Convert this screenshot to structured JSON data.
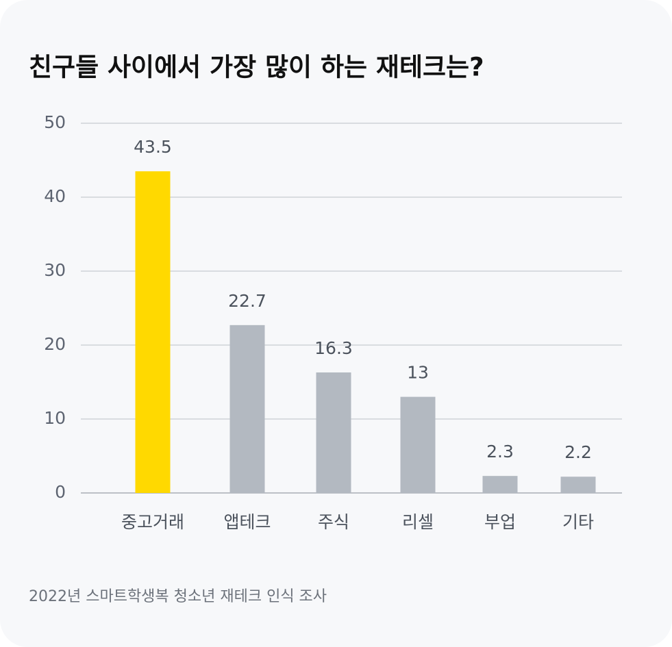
{
  "chart_data": {
    "type": "bar",
    "title": "친구들 사이에서 가장 많이 하는 재테크는?",
    "categories": [
      "중고거래",
      "앱테크",
      "주식",
      "리셀",
      "부업",
      "기타"
    ],
    "values": [
      43.5,
      22.7,
      16.3,
      13,
      2.3,
      2.2
    ],
    "colors": [
      "#ffd900",
      "#b3b9c1",
      "#b3b9c1",
      "#b3b9c1",
      "#b3b9c1",
      "#b3b9c1"
    ],
    "ylim": [
      0,
      50
    ],
    "yticks": [
      0,
      10,
      20,
      30,
      40,
      50
    ],
    "grid": true,
    "source": "2022년 스마트학생복 청소년 재테크 인식 조사"
  }
}
